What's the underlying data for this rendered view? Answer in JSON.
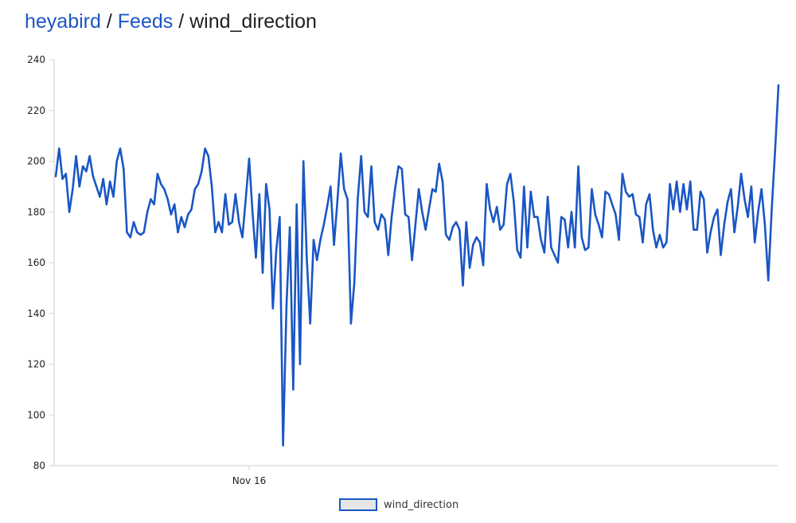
{
  "breadcrumb": {
    "owner": "heyabird",
    "section": "Feeds",
    "feed": "wind_direction",
    "separator": "/"
  },
  "colors": {
    "link": "#1a56c4",
    "series": "#1a56c4",
    "axis": "#cfcfcf",
    "legend_fill": "#e6e6e6"
  },
  "chart_data": {
    "type": "line",
    "title": "",
    "xlabel": "",
    "ylabel": "",
    "ylim": [
      80,
      240
    ],
    "yticks": [
      80,
      100,
      120,
      140,
      160,
      180,
      200,
      220,
      240
    ],
    "x_ticks": [
      {
        "label": "Nov 16",
        "index": 57
      }
    ],
    "grid": false,
    "legend_position": "bottom-center",
    "series": [
      {
        "name": "wind_direction",
        "values": [
          194,
          205,
          193,
          195,
          180,
          189,
          202,
          190,
          198,
          196,
          202,
          194,
          190,
          186,
          193,
          183,
          192,
          186,
          200,
          205,
          197,
          172,
          170,
          176,
          172,
          171,
          172,
          180,
          185,
          183,
          195,
          191,
          189,
          185,
          179,
          183,
          172,
          178,
          174,
          179,
          181,
          189,
          191,
          196,
          205,
          202,
          190,
          172,
          176,
          172,
          187,
          175,
          176,
          187,
          176,
          170,
          185,
          201,
          180,
          162,
          187,
          156,
          191,
          181,
          142,
          165,
          178,
          88,
          143,
          174,
          110,
          183,
          120,
          200,
          161,
          136,
          169,
          161,
          169,
          175,
          182,
          190,
          167,
          184,
          203,
          189,
          185,
          136,
          152,
          185,
          202,
          180,
          178,
          198,
          176,
          173,
          179,
          177,
          163,
          178,
          189,
          198,
          197,
          179,
          178,
          161,
          175,
          189,
          180,
          173,
          181,
          189,
          188,
          199,
          192,
          171,
          169,
          174,
          176,
          173,
          151,
          176,
          158,
          167,
          170,
          168,
          159,
          191,
          181,
          176,
          182,
          173,
          175,
          191,
          195,
          184,
          165,
          162,
          190,
          166,
          188,
          178,
          178,
          169,
          164,
          186,
          166,
          163,
          160,
          178,
          177,
          166,
          180,
          166,
          198,
          170,
          165,
          166,
          189,
          179,
          175,
          170,
          188,
          187,
          183,
          179,
          169,
          195,
          188,
          186,
          187,
          179,
          178,
          168,
          183,
          187,
          173,
          166,
          171,
          166,
          168,
          191,
          181,
          192,
          180,
          191,
          181,
          192,
          173,
          173,
          188,
          185,
          164,
          172,
          178,
          181,
          163,
          175,
          184,
          189,
          172,
          182,
          195,
          185,
          178,
          190,
          168,
          180,
          189,
          175,
          153,
          181,
          204,
          230
        ]
      }
    ]
  }
}
